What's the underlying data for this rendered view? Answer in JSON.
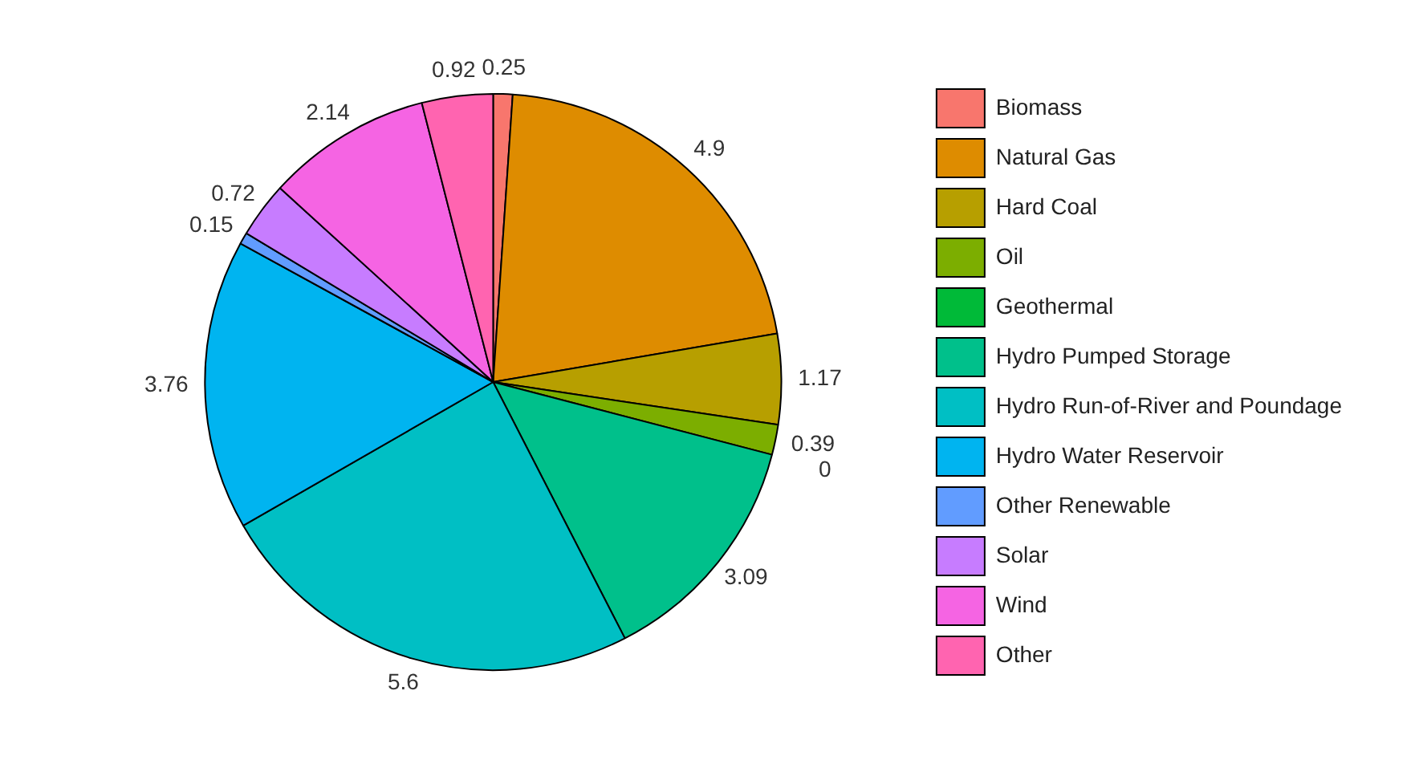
{
  "chart_data": {
    "type": "pie",
    "categories": [
      "Biomass",
      "Natural Gas",
      "Hard Coal",
      "Oil",
      "Geothermal",
      "Hydro Pumped Storage",
      "Hydro Run-of-River and Poundage",
      "Hydro Water Reservoir",
      "Other Renewable",
      "Solar",
      "Wind",
      "Other"
    ],
    "values": [
      0.25,
      4.9,
      1.17,
      0.39,
      0,
      3.09,
      5.6,
      3.76,
      0.15,
      0.72,
      2.14,
      0.92
    ],
    "colors": [
      "#f8766d",
      "#de8c00",
      "#b79f00",
      "#7cae00",
      "#00ba38",
      "#00c08b",
      "#00bfc4",
      "#00b4f0",
      "#619cff",
      "#c77cff",
      "#f564e3",
      "#ff64b0"
    ],
    "value_labels": [
      "0.25",
      "4.9",
      "1.17",
      "0.39",
      "0",
      "3.09",
      "5.6",
      "3.76",
      "0.15",
      "0.72",
      "2.14",
      "0.92"
    ],
    "legend": "right"
  }
}
